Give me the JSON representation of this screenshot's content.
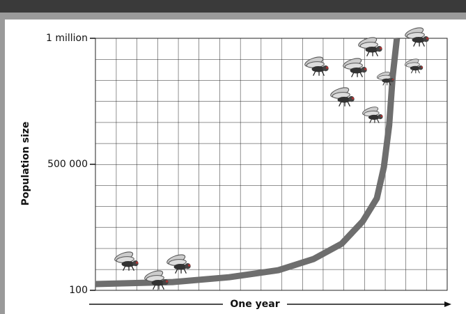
{
  "chart_data": {
    "type": "line",
    "x_label": "One year",
    "y_label": "Population size",
    "x": [
      0,
      0.22,
      0.38,
      0.52,
      0.62,
      0.7,
      0.76,
      0.8,
      0.82,
      0.835,
      0.845,
      0.857
    ],
    "values": [
      25000,
      33000,
      52000,
      80000,
      124000,
      185000,
      274000,
      365000,
      489000,
      655000,
      848000,
      1000000
    ],
    "color": "#6e6e6e",
    "xlim": [
      0,
      1
    ],
    "ylim": [
      100,
      1000000
    ],
    "yticks": [
      100,
      {
        "value": 500000,
        "label": "500 000"
      },
      {
        "value": 1000000,
        "label": "1 million"
      }
    ],
    "grid": true
  }
}
